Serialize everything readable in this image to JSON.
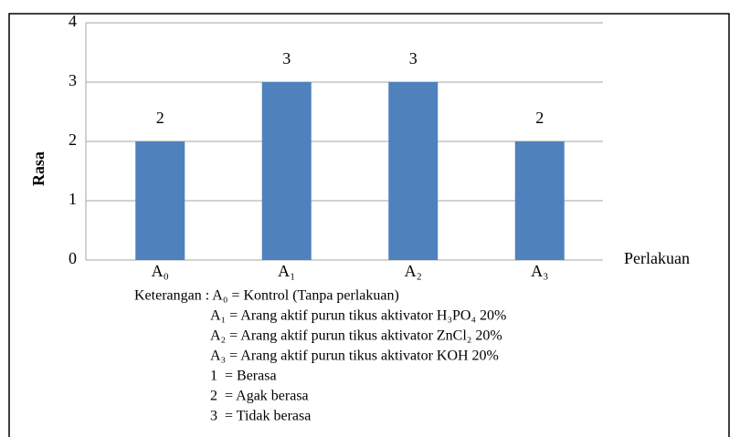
{
  "chart_data": {
    "type": "bar",
    "categories": [
      "A₀",
      "A₁",
      "A₂",
      "A₃"
    ],
    "values": [
      2,
      3,
      3,
      2
    ],
    "color": "#4f81bd",
    "ylabel": "Rasa",
    "xlabel": "Perlakuan",
    "ylim": [
      0,
      4
    ],
    "yticks": [
      0,
      1,
      2,
      3,
      4
    ],
    "grid": true,
    "notes": [
      "Keterangan : A₀ = Kontrol (Tanpa perlakuan)",
      "A₁ = Arang aktif purun tikus aktivator H₃PO₄ 20%",
      "A₂ = Arang aktif purun tikus aktivator ZnCl₂ 20%",
      "A₃ = Arang aktif purun tikus aktivator KOH 20%",
      "1  = Berasa",
      "2  = Agak berasa",
      "3  = Tidak berasa"
    ]
  }
}
